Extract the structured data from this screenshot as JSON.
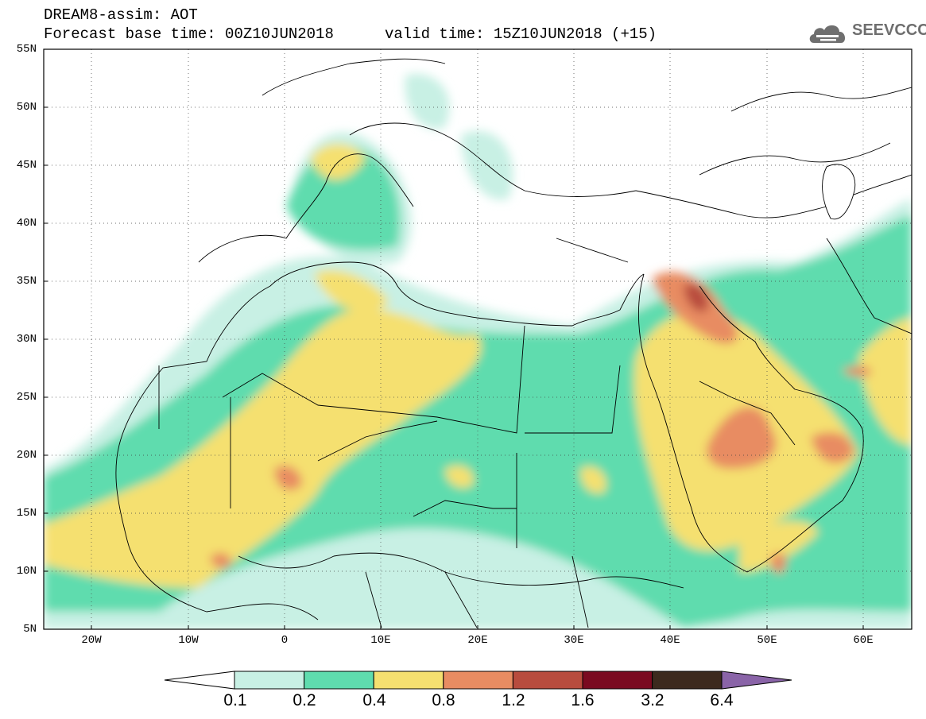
{
  "header": {
    "line1": "DREAM8-assim: AOT",
    "line2": "Forecast base time: 00Z10JUN2018",
    "valid": "valid time: 15Z10JUN2018 (+15)"
  },
  "logo": {
    "text": "SEEVCCC",
    "icon": "cloud-icon"
  },
  "map": {
    "lat_labels": [
      "55N",
      "50N",
      "45N",
      "40N",
      "35N",
      "30N",
      "25N",
      "20N",
      "15N",
      "10N",
      "5N"
    ],
    "lon_labels": [
      "20W",
      "10W",
      "0",
      "10E",
      "20E",
      "30E",
      "40E",
      "50E",
      "60E"
    ]
  },
  "colorbar": {
    "labels": [
      "0.1",
      "0.2",
      "0.4",
      "0.8",
      "1.2",
      "1.6",
      "3.2",
      "6.4"
    ],
    "colors": [
      "#c8f0e4",
      "#5fdcae",
      "#f5e070",
      "#e88c62",
      "#b84c3e",
      "#7a0a20",
      "#3c2a1e",
      "#8a64a8"
    ]
  }
}
